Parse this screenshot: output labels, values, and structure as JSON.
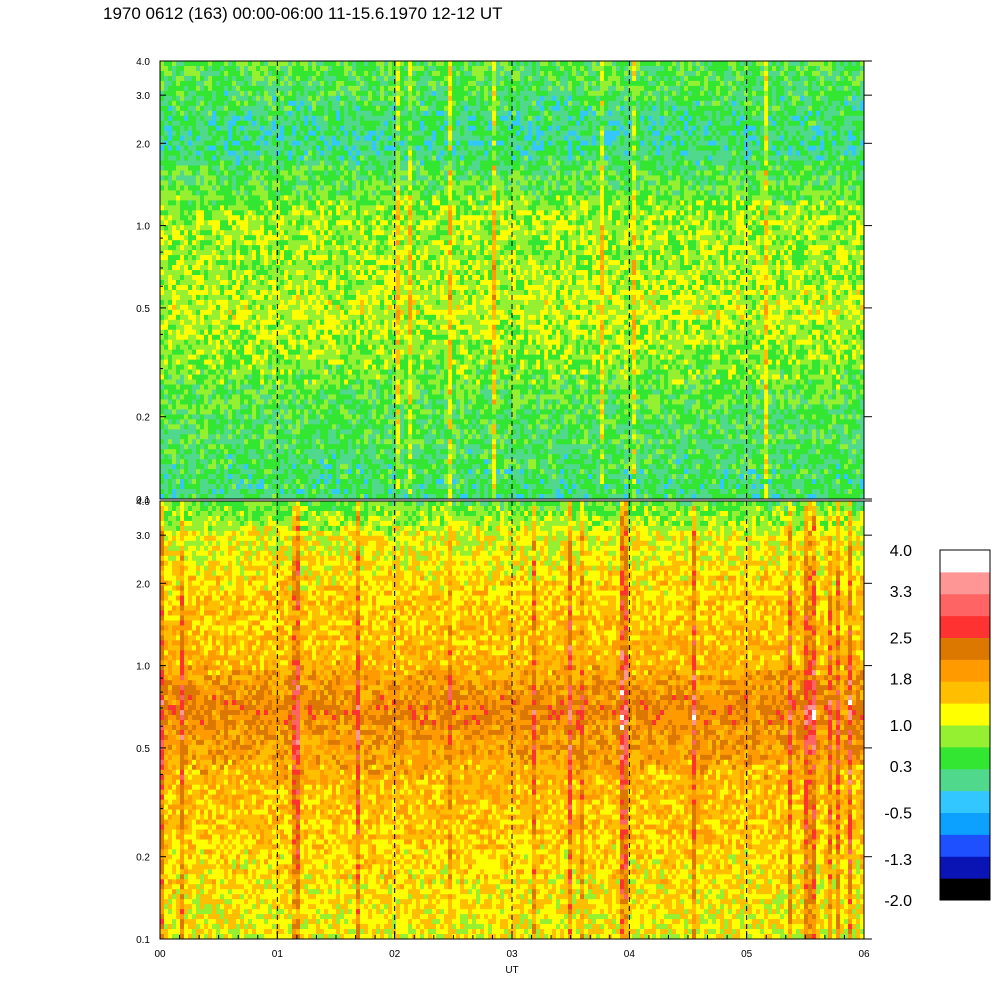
{
  "title": "1970 0612 (163) 00:00-06:00 11-15.6.1970  12-12 UT",
  "chart_data": [
    {
      "type": "heatmap",
      "panel": "top",
      "x_ticks": [
        "00",
        "01",
        "02",
        "03",
        "04",
        "05",
        "06"
      ],
      "xlim": [
        0,
        6
      ],
      "y_ticks": [
        "0.1",
        "0.2",
        "0.5",
        "1.0",
        "2.0",
        "3.0",
        "4.0"
      ],
      "y_tick_values": [
        0.1,
        0.2,
        0.5,
        1.0,
        2.0,
        3.0,
        4.0
      ],
      "ylim": [
        0.1,
        4.0
      ],
      "y_scale": "log",
      "grid": "dashed vertical lines at each hour",
      "typical_level_by_frequency": [
        {
          "y": 0.1,
          "level": 0.2
        },
        {
          "y": 0.2,
          "level": 0.4
        },
        {
          "y": 0.5,
          "level": 1.0
        },
        {
          "y": 0.8,
          "level": 0.8
        },
        {
          "y": 1.0,
          "level": 0.9
        },
        {
          "y": 2.0,
          "level": 0.1
        },
        {
          "y": 3.0,
          "level": 0.3
        },
        {
          "y": 4.0,
          "level": 0.5
        }
      ]
    },
    {
      "type": "heatmap",
      "panel": "bottom",
      "x_ticks": [
        "00",
        "01",
        "02",
        "03",
        "04",
        "05",
        "06"
      ],
      "xlim": [
        0,
        6
      ],
      "xlabel": "UT",
      "y_ticks": [
        "0.1",
        "0.2",
        "0.5",
        "1.0",
        "2.0",
        "3.0",
        "4.0"
      ],
      "y_tick_values": [
        0.1,
        0.2,
        0.5,
        1.0,
        2.0,
        3.0,
        4.0
      ],
      "ylim": [
        0.1,
        4.0
      ],
      "y_scale": "log",
      "grid": "dashed vertical lines at each hour",
      "typical_level_by_frequency": [
        {
          "y": 0.1,
          "level": 1.2
        },
        {
          "y": 0.2,
          "level": 1.4
        },
        {
          "y": 0.4,
          "level": 1.7
        },
        {
          "y": 0.7,
          "level": 2.2
        },
        {
          "y": 1.0,
          "level": 1.7
        },
        {
          "y": 2.0,
          "level": 1.4
        },
        {
          "y": 3.0,
          "level": 1.1
        },
        {
          "y": 4.0,
          "level": 0.5
        }
      ]
    }
  ],
  "colorbar": {
    "labels": [
      "4.0",
      "3.3",
      "2.5",
      "1.8",
      "1.0",
      "0.3",
      "-0.5",
      "-1.3",
      "-2.0"
    ],
    "label_values": [
      4.0,
      3.3,
      2.5,
      1.8,
      1.0,
      0.3,
      -0.5,
      -1.3,
      -2.0
    ],
    "colors": [
      "#000000",
      "#0a14b4",
      "#1e50ff",
      "#0ca0ff",
      "#32c8ff",
      "#50d88c",
      "#32e632",
      "#96f032",
      "#ffff00",
      "#ffbe00",
      "#ff9b00",
      "#dc7800",
      "#ff3232",
      "#ff6464",
      "#ff9696",
      "#ffffff"
    ],
    "range": [
      -2.0,
      4.0
    ]
  }
}
